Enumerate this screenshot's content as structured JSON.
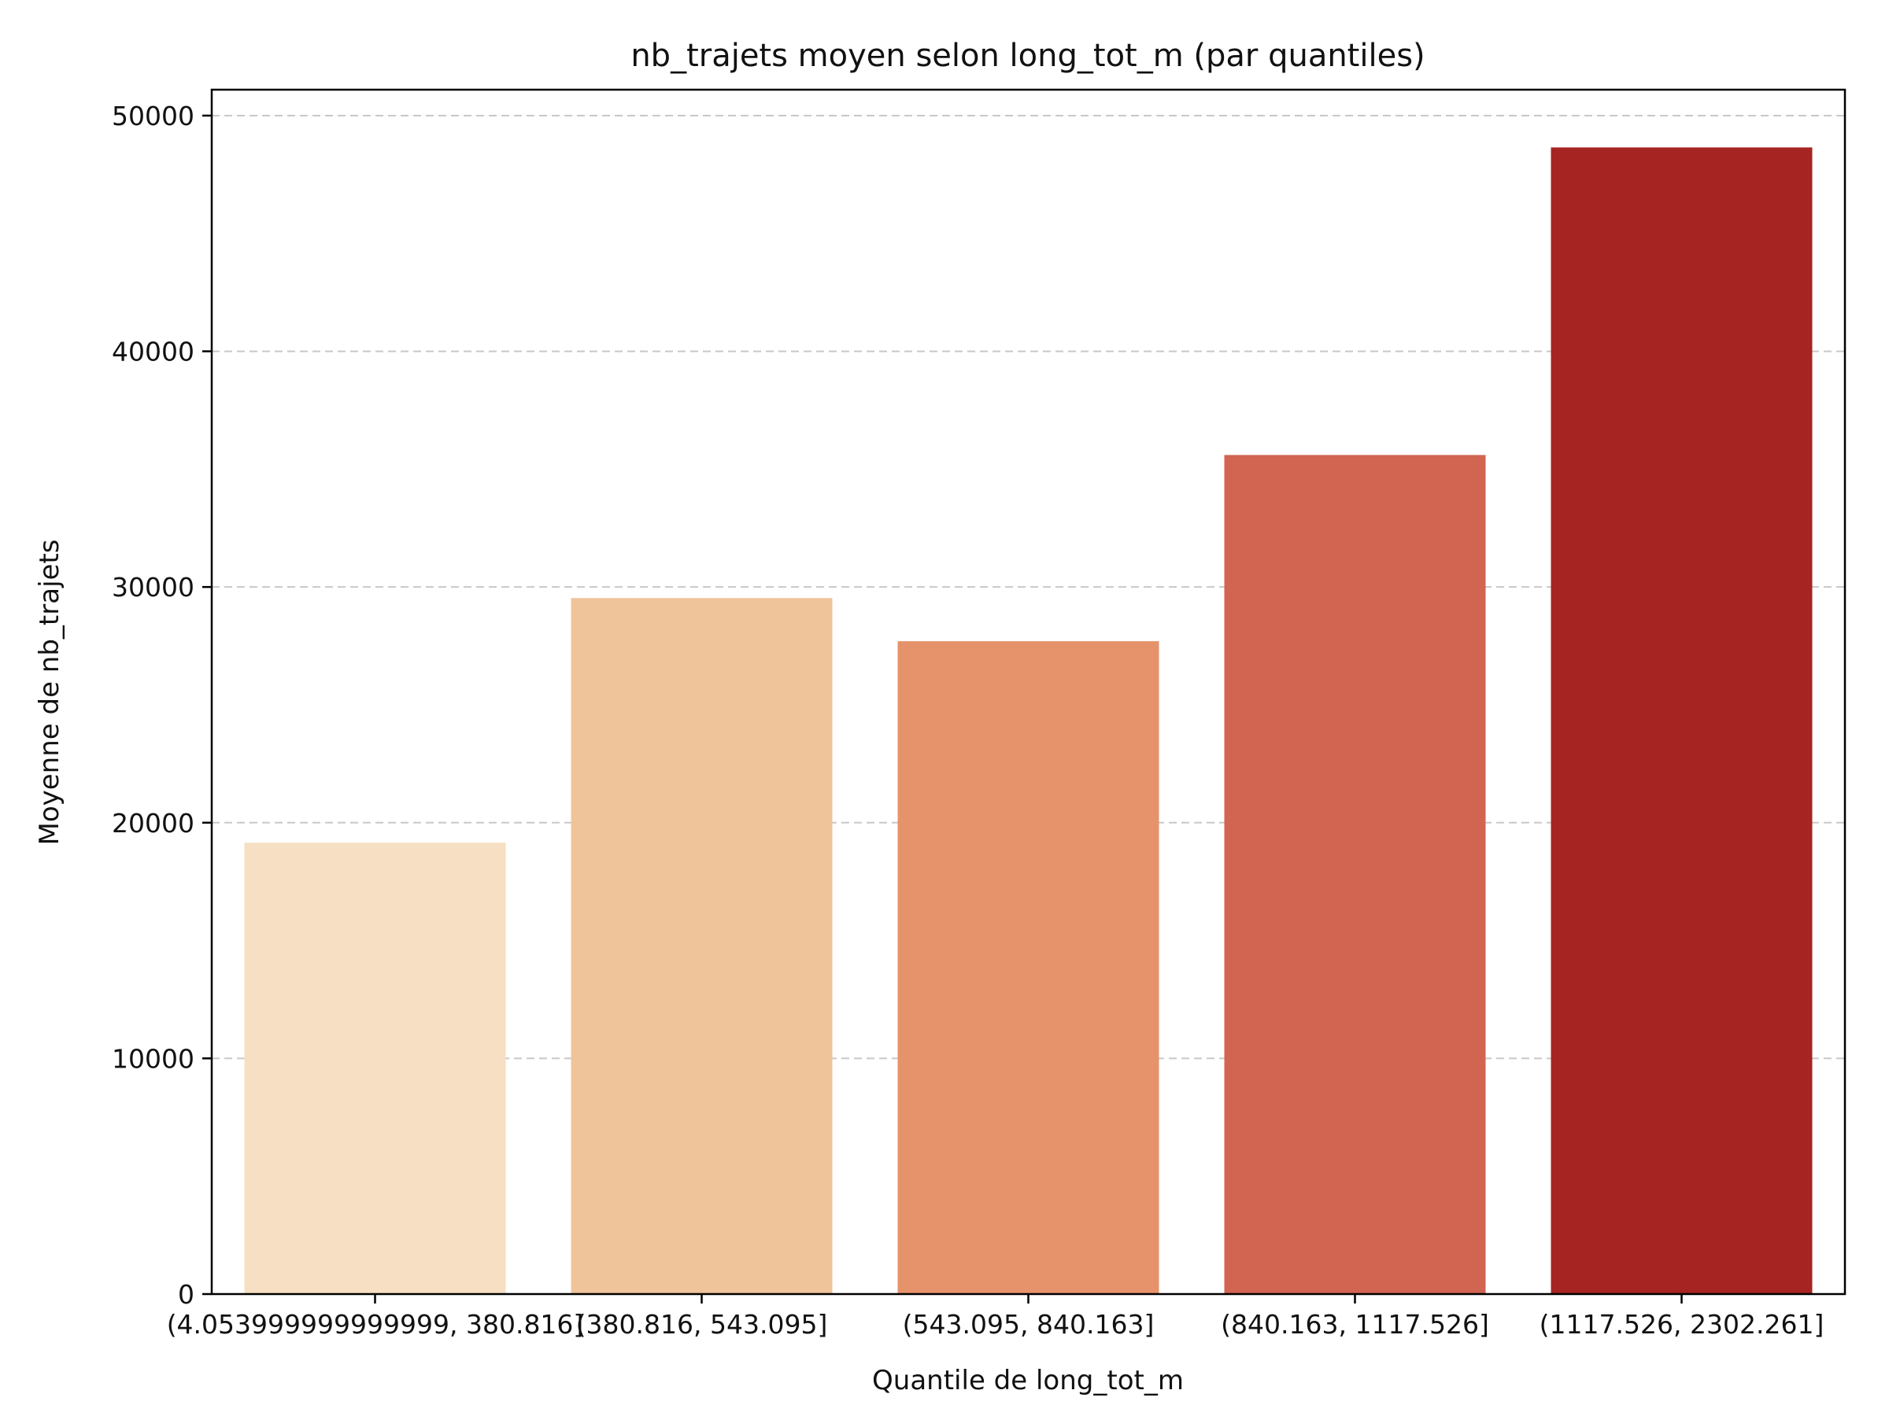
{
  "chart_data": {
    "type": "bar",
    "title": "nb_trajets moyen selon long_tot_m (par quantiles)",
    "xlabel": "Quantile de long_tot_m",
    "ylabel": "Moyenne de nb_trajets",
    "categories": [
      "(4.053999999999999, 380.816]",
      "(380.816, 543.095]",
      "(543.095, 840.163]",
      "(840.163, 1117.526]",
      "(1117.526, 2302.261]"
    ],
    "values": [
      19150,
      29530,
      27700,
      35600,
      48650
    ],
    "colors": [
      "#f6dfc2",
      "#efc49b",
      "#e6936c",
      "#d26452",
      "#a62421"
    ],
    "ylim": [
      0,
      51100
    ],
    "yticks": [
      0,
      10000,
      20000,
      30000,
      40000,
      50000
    ],
    "grid": "y-dashed",
    "legend": "none"
  }
}
